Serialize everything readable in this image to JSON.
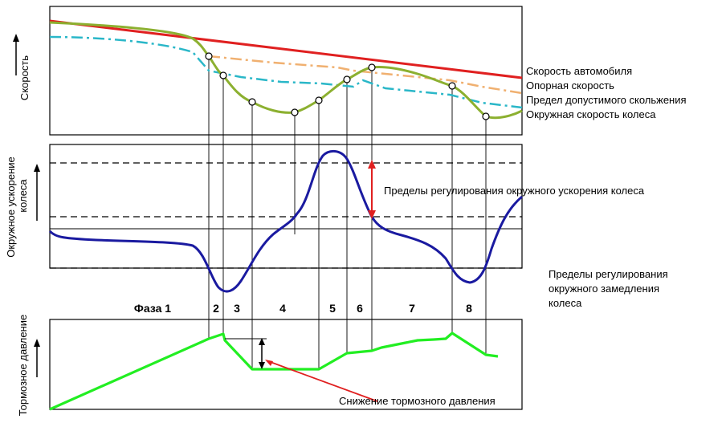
{
  "axes": {
    "speed": "Скорость",
    "accel_line1": "Окружное ускорение",
    "accel_line2": "колеса",
    "pressure": "Тормозное давление"
  },
  "legend": {
    "vehicle_speed": "Скорость автомобиля",
    "reference_speed": "Опорная скорость",
    "slip_limit": "Предел допустимого скольжения",
    "wheel_speed": "Окружная скорость колеса"
  },
  "annotations": {
    "accel_limits": "Пределы регулирования окружного ускорения колеса",
    "decel_limits_line1": "Пределы регулирования",
    "decel_limits_line2": "окружного замедления",
    "decel_limits_line3": "колеса",
    "pressure_drop": "Снижение тормозного давления"
  },
  "phases": [
    "Фаза 1",
    "2",
    "3",
    "4",
    "5",
    "6",
    "7",
    "8"
  ],
  "colors": {
    "vehicle_speed": "#e02020",
    "reference_speed": "#2ab7c8",
    "slip_limit": "#f0b070",
    "wheel_speed": "#8cb030",
    "acceleration": "#1a1aa0",
    "pressure": "#22ee22",
    "arrow": "#e02020"
  }
}
